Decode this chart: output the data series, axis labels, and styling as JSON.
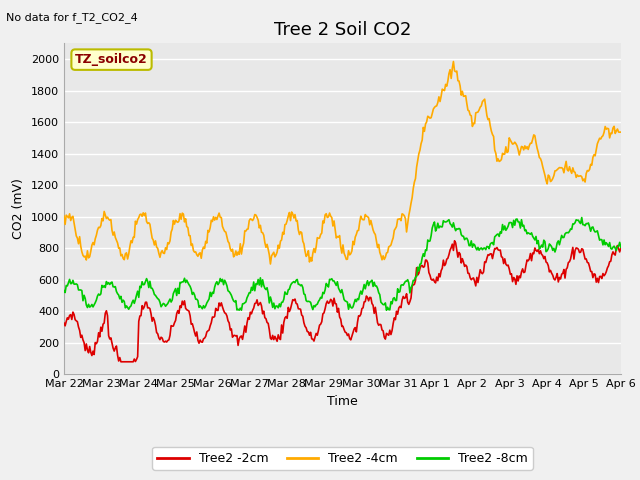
{
  "title": "Tree 2 Soil CO2",
  "xlabel": "Time",
  "ylabel": "CO2 (mV)",
  "note": "No data for f_T2_CO2_4",
  "box_label": "TZ_soilco2",
  "ylim": [
    0,
    2100
  ],
  "yticks": [
    0,
    200,
    400,
    600,
    800,
    1000,
    1200,
    1400,
    1600,
    1800,
    2000
  ],
  "xtick_labels": [
    "Mar 22",
    "Mar 23",
    "Mar 24",
    "Mar 25",
    "Mar 26",
    "Mar 27",
    "Mar 28",
    "Mar 29",
    "Mar 30",
    "Mar 31",
    "Apr 1",
    "Apr 2",
    "Apr 3",
    "Apr 4",
    "Apr 5",
    "Apr 6"
  ],
  "bg_color": "#e8e8e8",
  "grid_color": "#ffffff",
  "fig_color": "#f0f0f0",
  "line_red": "#dd0000",
  "line_orange": "#ffaa00",
  "line_green": "#00cc00",
  "legend_labels": [
    "Tree2 -2cm",
    "Tree2 -4cm",
    "Tree2 -8cm"
  ],
  "title_fontsize": 13,
  "label_fontsize": 9,
  "tick_fontsize": 8,
  "note_fontsize": 8
}
